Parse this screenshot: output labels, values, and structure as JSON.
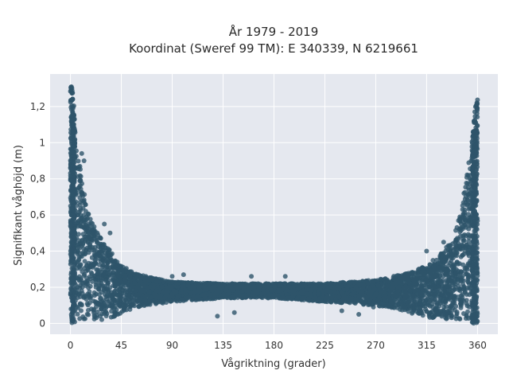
{
  "chart_data": {
    "type": "scatter",
    "title_lines": [
      "År 1979 - 2019",
      "Koordinat (Sweref 99 TM): E 340339, N 6219661"
    ],
    "xlabel": "Vågriktning (grader)",
    "ylabel": "Signifikant våghöjd (m)",
    "xlim": [
      -18,
      378
    ],
    "ylim": [
      -0.06,
      1.38
    ],
    "x_ticks": [
      0,
      45,
      90,
      135,
      180,
      225,
      270,
      315,
      360
    ],
    "x_tick_labels": [
      "0",
      "45",
      "90",
      "135",
      "180",
      "225",
      "270",
      "315",
      "360"
    ],
    "y_ticks": [
      0,
      0.2,
      0.4,
      0.6,
      0.8,
      1.0,
      1.2
    ],
    "y_tick_labels": [
      "0",
      "0,2",
      "0,4",
      "0,6",
      "0,8",
      "1",
      "1,2"
    ],
    "grid": true,
    "background": "#e5e8ef",
    "marker_color": "#2e546a",
    "envelope": {
      "x": [
        0,
        2,
        5,
        10,
        15,
        20,
        30,
        45,
        60,
        90,
        135,
        180,
        225,
        270,
        300,
        315,
        330,
        340,
        345,
        350,
        355,
        358,
        360
      ],
      "y_max": [
        1.32,
        1.3,
        1.05,
        0.8,
        0.62,
        0.55,
        0.45,
        0.32,
        0.27,
        0.23,
        0.22,
        0.22,
        0.22,
        0.24,
        0.28,
        0.32,
        0.4,
        0.5,
        0.62,
        0.8,
        1.0,
        1.2,
        1.25
      ],
      "y_min": [
        0.02,
        0.02,
        0.02,
        0.02,
        0.02,
        0.02,
        0.02,
        0.05,
        0.09,
        0.12,
        0.14,
        0.14,
        0.12,
        0.1,
        0.06,
        0.03,
        0.02,
        0.02,
        0.02,
        0.02,
        0.02,
        0.02,
        0.02
      ]
    },
    "outliers": [
      {
        "x": 10,
        "y": 0.94
      },
      {
        "x": 12,
        "y": 0.9
      },
      {
        "x": 30,
        "y": 0.55
      },
      {
        "x": 35,
        "y": 0.5
      },
      {
        "x": 90,
        "y": 0.26
      },
      {
        "x": 100,
        "y": 0.27
      },
      {
        "x": 130,
        "y": 0.04
      },
      {
        "x": 145,
        "y": 0.06
      },
      {
        "x": 160,
        "y": 0.26
      },
      {
        "x": 190,
        "y": 0.26
      },
      {
        "x": 240,
        "y": 0.07
      },
      {
        "x": 255,
        "y": 0.05
      },
      {
        "x": 268,
        "y": 0.09
      },
      {
        "x": 315,
        "y": 0.4
      },
      {
        "x": 330,
        "y": 0.45
      }
    ]
  }
}
